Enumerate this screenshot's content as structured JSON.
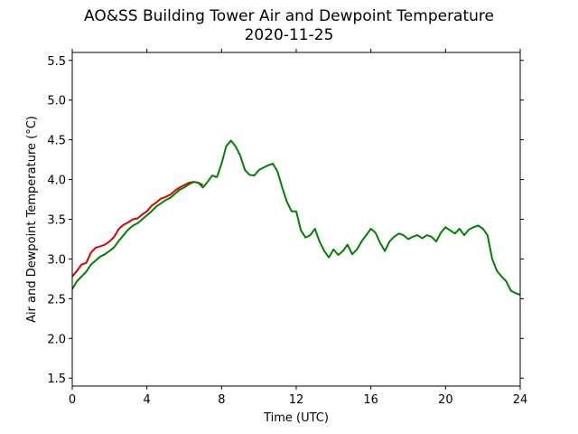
{
  "chart_data": {
    "type": "line",
    "title": "AO&SS Building Tower Air and Dewpoint Temperature",
    "subtitle": "2020-11-25",
    "xlabel": "Time (UTC)",
    "ylabel": "Air and Dewpoint Temperature (°C)",
    "xlim": [
      0,
      24
    ],
    "ylim": [
      1.4,
      5.6
    ],
    "x_ticks": [
      "0",
      "4",
      "8",
      "12",
      "16",
      "20",
      "24"
    ],
    "y_ticks": [
      "1.5",
      "2.0",
      "2.5",
      "3.0",
      "3.5",
      "4.0",
      "4.5",
      "5.0",
      "5.5"
    ],
    "grid": false,
    "series": [
      {
        "color": "#e00000",
        "x": [
          0,
          0.25,
          0.5,
          0.75,
          1.0,
          1.25,
          1.5,
          1.75,
          2.0,
          2.25,
          2.5,
          2.75,
          3.0,
          3.25,
          3.5,
          3.75,
          4.0,
          4.25,
          4.5,
          4.75,
          5.0,
          5.25,
          5.5,
          5.75,
          6.0,
          6.25,
          6.5,
          6.75,
          7.0
        ],
        "y": [
          2.78,
          2.85,
          2.93,
          2.95,
          3.08,
          3.14,
          3.16,
          3.18,
          3.22,
          3.28,
          3.38,
          3.43,
          3.46,
          3.5,
          3.51,
          3.56,
          3.6,
          3.67,
          3.71,
          3.76,
          3.78,
          3.81,
          3.86,
          3.9,
          3.93,
          3.96,
          3.97,
          3.96,
          3.93
        ]
      },
      {
        "color": "#008000",
        "x": [
          0,
          0.25,
          0.5,
          0.75,
          1.0,
          1.25,
          1.5,
          1.75,
          2.0,
          2.25,
          2.5,
          2.75,
          3.0,
          3.25,
          3.5,
          3.75,
          4.0,
          4.25,
          4.5,
          4.75,
          5.0,
          5.25,
          5.5,
          5.75,
          6.0,
          6.25,
          6.5,
          6.75,
          7.0,
          7.25,
          7.5,
          7.75,
          8.0,
          8.25,
          8.5,
          8.75,
          9.0,
          9.25,
          9.5,
          9.75,
          10.0,
          10.25,
          10.5,
          10.75,
          11.0,
          11.25,
          11.5,
          11.75,
          12.0,
          12.25,
          12.5,
          12.75,
          13.0,
          13.25,
          13.5,
          13.75,
          14.0,
          14.25,
          14.5,
          14.75,
          15.0,
          15.25,
          15.5,
          15.75,
          16.0,
          16.25,
          16.5,
          16.75,
          17.0,
          17.25,
          17.5,
          17.75,
          18.0,
          18.25,
          18.5,
          18.75,
          19.0,
          19.25,
          19.5,
          19.75,
          20.0,
          20.25,
          20.5,
          20.75,
          21.0,
          21.25,
          21.5,
          21.75,
          22.0,
          22.25,
          22.5,
          22.75,
          23.0,
          23.25,
          23.5,
          23.75,
          24.0
        ],
        "y": [
          2.62,
          2.72,
          2.78,
          2.84,
          2.93,
          2.98,
          3.03,
          3.06,
          3.1,
          3.15,
          3.23,
          3.3,
          3.37,
          3.42,
          3.45,
          3.5,
          3.55,
          3.6,
          3.66,
          3.7,
          3.74,
          3.77,
          3.82,
          3.87,
          3.9,
          3.94,
          3.97,
          3.96,
          3.9,
          3.97,
          4.05,
          4.03,
          4.2,
          4.42,
          4.49,
          4.42,
          4.3,
          4.12,
          4.06,
          4.05,
          4.12,
          4.15,
          4.18,
          4.2,
          4.1,
          3.9,
          3.72,
          3.6,
          3.6,
          3.36,
          3.27,
          3.3,
          3.38,
          3.22,
          3.1,
          3.02,
          3.12,
          3.05,
          3.1,
          3.18,
          3.06,
          3.12,
          3.22,
          3.3,
          3.38,
          3.33,
          3.2,
          3.1,
          3.22,
          3.28,
          3.32,
          3.3,
          3.25,
          3.28,
          3.3,
          3.26,
          3.3,
          3.28,
          3.22,
          3.33,
          3.4,
          3.36,
          3.32,
          3.38,
          3.3,
          3.37,
          3.4,
          3.42,
          3.38,
          3.3,
          3.0,
          2.85,
          2.78,
          2.72,
          2.6,
          2.57,
          2.55
        ]
      }
    ]
  }
}
